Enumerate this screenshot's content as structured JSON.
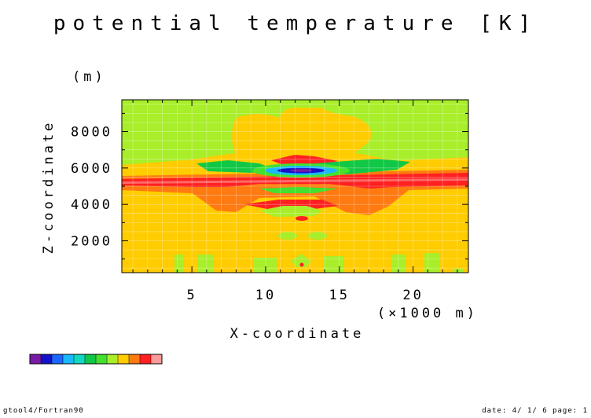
{
  "chart_data": {
    "type": "heatmap",
    "title": "potential temperature [K]",
    "xlabel": "X-coordinate",
    "xunit": "(×1000 m)",
    "ylabel": "Z-coordinate",
    "yunit": "(m)",
    "xlim": [
      0.25,
      23.75
    ],
    "ylim": [
      250,
      9750
    ],
    "xticks": [
      5,
      10,
      15,
      20
    ],
    "yticks": [
      2000,
      4000,
      6000,
      8000
    ],
    "grid": true,
    "colorbar": [
      "#7a1aa6",
      "#1313c8",
      "#1a66ff",
      "#19b8ff",
      "#10d8c0",
      "#10c845",
      "#44e030",
      "#a8ee2a",
      "#ffcc00",
      "#ff7a10",
      "#ff2020",
      "#ff9a9a"
    ],
    "background_level": "#ffcc00",
    "regions": [
      {
        "level": "#a8ee2a",
        "x": [
          0.25,
          23.75
        ],
        "z": [
          6000,
          9750
        ]
      },
      {
        "level": "#ffcc00",
        "x": [
          8,
          16.5
        ],
        "z": [
          7000,
          9200
        ]
      },
      {
        "level": "#ffcc00",
        "x": [
          0.25,
          23.75
        ],
        "z": [
          5400,
          6300
        ]
      },
      {
        "level": "#ff2020",
        "x": [
          0.25,
          23.75
        ],
        "z": [
          4500,
          5800
        ]
      },
      {
        "level": "#10c845",
        "x": [
          5,
          20
        ],
        "z": [
          5500,
          6500
        ]
      },
      {
        "level": "#19b8ff",
        "x": [
          9,
          16
        ],
        "z": [
          5600,
          6200
        ]
      },
      {
        "level": "#1313c8",
        "x": [
          10.5,
          14.5
        ],
        "z": [
          5750,
          6000
        ]
      },
      {
        "level": "#ff2020",
        "x": [
          11,
          14
        ],
        "z": [
          6400,
          7000
        ]
      },
      {
        "level": "#a8ee2a",
        "x": [
          10.5,
          14.5
        ],
        "z": [
          4300,
          4700
        ]
      },
      {
        "level": "#ff2020",
        "x": [
          10.5,
          14.5
        ],
        "z": [
          3500,
          3900
        ]
      },
      {
        "level": "#a8ee2a",
        "x": [
          11,
          14
        ],
        "z": [
          1800,
          2200
        ]
      },
      {
        "level": "#ff2020",
        "x": [
          12.3,
          12.7
        ],
        "z": [
          300,
          600
        ]
      }
    ]
  },
  "footer": {
    "left": "gtool4/Fortran90",
    "right": "date: 4/ 1/ 6 page: 1"
  }
}
